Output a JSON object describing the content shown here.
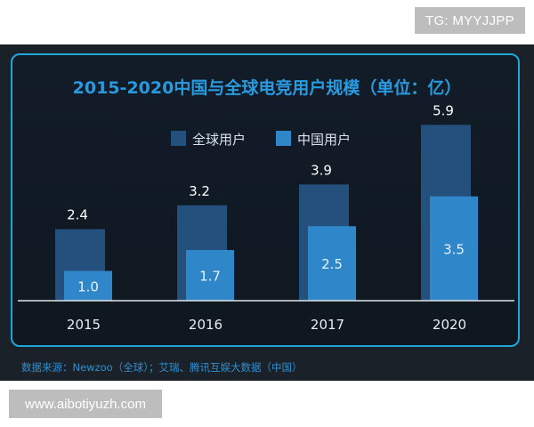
{
  "watermark_top": "TG: MYYJJPP",
  "watermark_bottom": "www.aibotiyuzh.com",
  "source_note": "数据来源：Newzoo（全球）；艾瑞、腾讯互娱大数据（中国）",
  "chart_data": {
    "type": "bar",
    "title": "2015-2020中国与全球电竞用户规模（单位：亿）",
    "categories": [
      "2015",
      "2016",
      "2017",
      "2020"
    ],
    "series": [
      {
        "name": "全球用户",
        "values": [
          2.4,
          3.2,
          3.9,
          5.9
        ],
        "color": "#24507e"
      },
      {
        "name": "中国用户",
        "values": [
          1.0,
          1.7,
          2.5,
          3.5
        ],
        "color": "#2f86c8"
      }
    ],
    "value_labels": {
      "global": [
        "2.4",
        "3.2",
        "3.9",
        "5.9"
      ],
      "china": [
        "1.0",
        "1.7",
        "2.5",
        "3.5"
      ]
    },
    "ylim": [
      0,
      6.2
    ],
    "legend": "top-center",
    "grid": false
  }
}
